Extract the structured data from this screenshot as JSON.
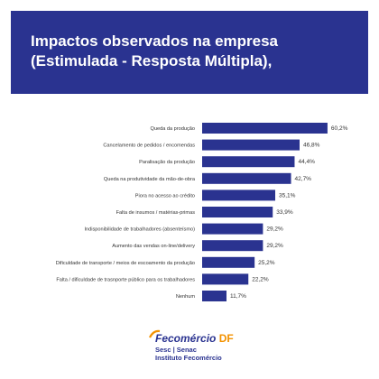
{
  "header": {
    "title": "Impactos observados na empresa (Estimulada - Resposta Múltipla),"
  },
  "chart_data": {
    "type": "bar",
    "orientation": "horizontal",
    "categories": [
      "Queda da produção",
      "Cancelamento de pedidos / encomendas",
      "Paralisação da produção",
      "Queda na produtividade da mão-de-obra",
      "Piora no acesso ao crédito",
      "Falta de insumos / matérias-primas",
      "Indisponibilidade de trabalhadores (absenteísmo)",
      "Aumento das vendas on-line/delivery",
      "Dificuldade de transporte / meios de escoamento da produção",
      "Falta / dificuldade de trasnporte público para os trabalhadores",
      "Nenhum"
    ],
    "values": [
      60.2,
      46.8,
      44.4,
      42.7,
      35.1,
      33.9,
      29.2,
      29.2,
      25.2,
      22.2,
      11.7
    ],
    "value_labels": [
      "60,2%",
      "46,8%",
      "44,4%",
      "42,7%",
      "35,1%",
      "33,9%",
      "29,2%",
      "29,2%",
      "25,2%",
      "22,2%",
      "11,7%"
    ],
    "xlim": [
      0,
      65
    ],
    "bar_color": "#2a3390",
    "title": "",
    "xlabel": "",
    "ylabel": ""
  },
  "logo": {
    "name_main": "Fecomércio",
    "name_accent": "DF",
    "line1": "Sesc | Senac",
    "line2": "Instituto Fecomércio"
  },
  "colors": {
    "header_bg": "#2a3390",
    "accent": "#f39200"
  }
}
